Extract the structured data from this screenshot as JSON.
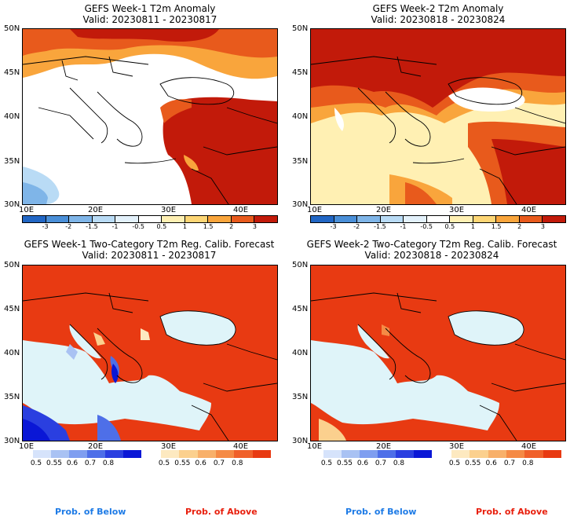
{
  "panels": [
    {
      "title1": "GEFS Week-1 T2m Anomaly",
      "title2": "Valid: 20230811 - 20230817"
    },
    {
      "title1": "GEFS Week-2 T2m Anomaly",
      "title2": "Valid: 20230818 - 20230824"
    },
    {
      "title1": "GEFS Week-1 Two-Category T2m Reg. Calib. Forecast",
      "title2": "Valid: 20230811 - 20230817"
    },
    {
      "title1": "GEFS Week-2 Two-Category T2m Reg. Calib. Forecast",
      "title2": "Valid: 20230818 - 20230824"
    }
  ],
  "lat_labels": [
    "50N",
    "45N",
    "40N",
    "35N",
    "30N"
  ],
  "lon_labels": [
    "10E",
    "20E",
    "30E",
    "40E"
  ],
  "anomaly_colorbar": {
    "ticks": [
      "-3",
      "-2",
      "-1.5",
      "-1",
      "-0.5",
      "0.5",
      "1",
      "1.5",
      "2",
      "3"
    ],
    "colors": [
      "#2166c4",
      "#4a8fd8",
      "#7fb5e8",
      "#b9dbf5",
      "#e3f1fb",
      "#ffffff",
      "#fff0b3",
      "#fdd675",
      "#f9a53c",
      "#e85a1c",
      "#c21a0a"
    ]
  },
  "prob_below_bar": {
    "ticks": [
      "0.5",
      "0.55",
      "0.6",
      "0.7",
      "0.8"
    ],
    "colors": [
      "#d6e3fb",
      "#a9c2f3",
      "#7f9ef0",
      "#4e6fe8",
      "#2a3fe0",
      "#0a17d6"
    ]
  },
  "prob_above_bar": {
    "ticks": [
      "0.5",
      "0.55",
      "0.6",
      "0.7",
      "0.8"
    ],
    "colors": [
      "#fde9c0",
      "#fbd08e",
      "#f8b06a",
      "#f58a45",
      "#f0602a",
      "#e83a12"
    ]
  },
  "legend_labels": {
    "below": "Prob. of Below",
    "above": "Prob. of Above"
  },
  "legend_colors": {
    "below": "#1e7be6",
    "above": "#e8200e"
  }
}
